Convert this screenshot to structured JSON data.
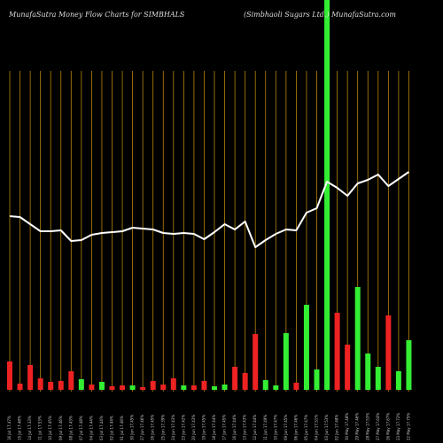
{
  "title": "MunafaSutra  Money Flow  Charts for SIMBHALS",
  "subtitle": "(Simbhaoli   Sugars Ltd.) MunafaSutra.com",
  "colors": {
    "background": "#000000",
    "grid": "#b8860b",
    "line": "#ffffff",
    "up": "#33ee33",
    "down": "#ee2222"
  },
  "chart_data": {
    "type": "bar",
    "title": "MunafaSutra  Money Flow  Charts for SIMBHALS",
    "subtitle": "(Simbhaoli   Sugars Ltd.) MunafaSutra.com",
    "grid": true,
    "categories": [
      "16 Jul 17.47%",
      "15 Jul 17.48%",
      "14 Jul 17.33%",
      "11 Jul 17.53%",
      "10 Jul 17.45%",
      "09 Jul 17.46%",
      "08 Jul 17.43%",
      "07 Jul 17.48%",
      "04 Jul 17.44%",
      "03 Jul 17.44%",
      "02 Jul 17.44%",
      "01 Jul 17.46%",
      "30 Jun 17.45%",
      "27 Jun 17.46%",
      "26 Jun 17.45%",
      "25 Jun 17.39%",
      "24 Jun 17.43%",
      "23 Jun 17.42%",
      "20 Jun 17.43%",
      "19 Jun 17.45%",
      "18 Jun 17.44%",
      "17 Jun 17.45%",
      "16 Jun 17.44%",
      "13 Jun 17.43%",
      "12 Jun 17.44%",
      "11 Jun 17.49%",
      "10 Jun 17.47%",
      "09 Jun 17.45%",
      "06 Jun 17.46%",
      "05 Jun 17.47%",
      "04 Jun 17.51%",
      "03 Jun 17.53%",
      "02 Jun 17.48%",
      "30 May 17.48%",
      "29 May 17.46%",
      "28 May 17.53%",
      "27 May 17.64%",
      "26 May 17.67%",
      "23 May 17.72%",
      "22 May 17.75%"
    ],
    "bars": [
      {
        "value": 32,
        "direction": "down"
      },
      {
        "value": 7,
        "direction": "down"
      },
      {
        "value": 28,
        "direction": "down"
      },
      {
        "value": 13,
        "direction": "down"
      },
      {
        "value": 9,
        "direction": "down"
      },
      {
        "value": 10,
        "direction": "down"
      },
      {
        "value": 21,
        "direction": "down"
      },
      {
        "value": 12,
        "direction": "up"
      },
      {
        "value": 6,
        "direction": "down"
      },
      {
        "value": 9,
        "direction": "up"
      },
      {
        "value": 4,
        "direction": "down"
      },
      {
        "value": 5,
        "direction": "down"
      },
      {
        "value": 5,
        "direction": "up"
      },
      {
        "value": 3,
        "direction": "down"
      },
      {
        "value": 10,
        "direction": "down"
      },
      {
        "value": 6,
        "direction": "down"
      },
      {
        "value": 13,
        "direction": "down"
      },
      {
        "value": 5,
        "direction": "up"
      },
      {
        "value": 5,
        "direction": "down"
      },
      {
        "value": 10,
        "direction": "down"
      },
      {
        "value": 4,
        "direction": "up"
      },
      {
        "value": 6,
        "direction": "up"
      },
      {
        "value": 26,
        "direction": "down"
      },
      {
        "value": 19,
        "direction": "down"
      },
      {
        "value": 63,
        "direction": "down"
      },
      {
        "value": 11,
        "direction": "up"
      },
      {
        "value": 5,
        "direction": "up"
      },
      {
        "value": 64,
        "direction": "up"
      },
      {
        "value": 8,
        "direction": "down"
      },
      {
        "value": 96,
        "direction": "up"
      },
      {
        "value": 23,
        "direction": "up"
      },
      {
        "value": 440,
        "direction": "up"
      },
      {
        "value": 87,
        "direction": "down"
      },
      {
        "value": 51,
        "direction": "down"
      },
      {
        "value": 116,
        "direction": "up"
      },
      {
        "value": 41,
        "direction": "up"
      },
      {
        "value": 26,
        "direction": "up"
      },
      {
        "value": 84,
        "direction": "down"
      },
      {
        "value": 21,
        "direction": "up"
      },
      {
        "value": 56,
        "direction": "up"
      }
    ],
    "line_values": [
      196,
      195,
      187,
      179,
      179,
      180,
      168,
      169,
      175,
      177,
      178,
      179,
      183,
      182,
      181,
      177,
      176,
      177,
      176,
      170,
      178,
      187,
      181,
      190,
      161,
      169,
      176,
      181,
      180,
      200,
      205,
      235,
      228,
      219,
      233,
      237,
      243,
      230,
      238,
      246
    ],
    "ylim": [
      0,
      440
    ],
    "line_ylim": [
      0,
      440
    ]
  }
}
